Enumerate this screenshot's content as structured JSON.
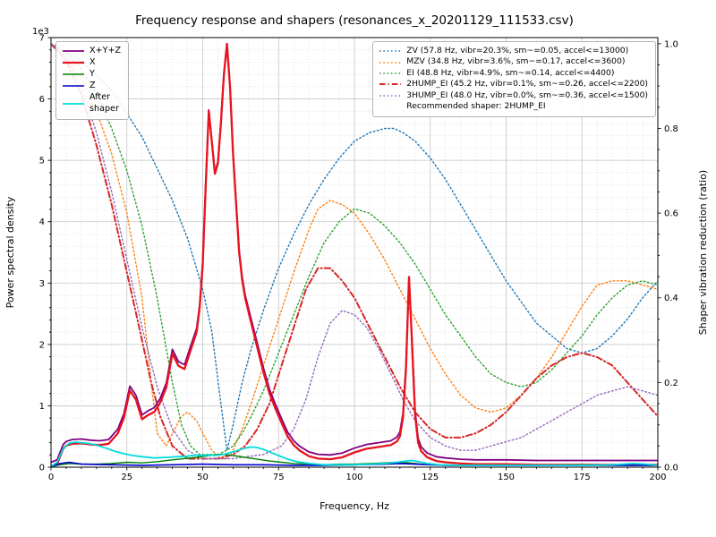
{
  "title": "Frequency response and shapers (resonances_x_20201129_111533.csv)",
  "axes": {
    "x_label": "Frequency, Hz",
    "y_left_label": "Power spectral density",
    "y_right_label": "Shaper vibration reduction (ratio)",
    "y_left_offset": "1e3",
    "x_ticks": [
      0,
      25,
      50,
      75,
      100,
      125,
      150,
      175,
      200
    ],
    "y_left_ticks": [
      0,
      1,
      2,
      3,
      4,
      5,
      6,
      7
    ],
    "y_right_ticks": [
      0.0,
      0.2,
      0.4,
      0.6,
      0.8,
      1.0
    ],
    "x_minor_step": 5,
    "y_left_minor_step": 0.2,
    "y_right_minor_step": 0.05
  },
  "legends": {
    "psd": {
      "items": [
        {
          "series": "X+Y+Z",
          "label": "X+Y+Z"
        },
        {
          "series": "X",
          "label": "X"
        },
        {
          "series": "Y",
          "label": "Y"
        },
        {
          "series": "Z",
          "label": "Z"
        },
        {
          "series": "After shaper",
          "label": "After\nshaper"
        }
      ]
    },
    "shapers": {
      "items": [
        {
          "series": "ZV",
          "label": "ZV (57.8 Hz, vibr=20.3%, sm~=0.05, accel<=13000)"
        },
        {
          "series": "MZV",
          "label": "MZV (34.8 Hz, vibr=3.6%, sm~=0.17, accel<=3600)"
        },
        {
          "series": "EI",
          "label": "EI (48.8 Hz, vibr=4.9%, sm~=0.14, accel<=4400)"
        },
        {
          "series": "2HUMP_EI",
          "label": "2HUMP_EI (45.2 Hz, vibr=0.1%, sm~=0.26, accel<=2200)"
        },
        {
          "series": "3HUMP_EI",
          "label": "3HUMP_EI (48.0 Hz, vibr=0.0%, sm~=0.36, accel<=1500)"
        }
      ],
      "note": "Recommended shaper: 2HUMP_EI"
    }
  },
  "chart_data": {
    "type": "line",
    "title": "Frequency response and shapers (resonances_x_20201129_111533.csv)",
    "xlabel": "Frequency, Hz",
    "ylabel_left": "Power spectral density",
    "ylabel_right": "Shaper vibration reduction (ratio)",
    "x_range": [
      0,
      200
    ],
    "y_left_range": [
      0,
      7
    ],
    "y_left_units": "1e3",
    "y_right_range": [
      0,
      1
    ],
    "right_axis_top_equiv_left": 6.9,
    "grid": {
      "major": true,
      "minor": true
    },
    "series": [
      {
        "name": "ZV",
        "axis": "right",
        "color": "#1f77b4",
        "style": "dotted",
        "width": 1.4,
        "x": [
          0,
          10,
          20,
          30,
          40,
          45,
          50,
          53,
          56,
          58,
          60,
          63,
          66,
          70,
          75,
          80,
          85,
          90,
          95,
          100,
          105,
          110,
          113,
          116,
          120,
          125,
          130,
          135,
          140,
          145,
          150,
          155,
          160,
          165,
          170,
          175,
          180,
          185,
          190,
          195,
          200
        ],
        "y": [
          1.0,
          0.96,
          0.89,
          0.78,
          0.63,
          0.54,
          0.42,
          0.32,
          0.15,
          0.04,
          0.1,
          0.2,
          0.28,
          0.37,
          0.47,
          0.55,
          0.62,
          0.68,
          0.73,
          0.77,
          0.79,
          0.8,
          0.8,
          0.79,
          0.77,
          0.73,
          0.68,
          0.62,
          0.56,
          0.5,
          0.44,
          0.39,
          0.34,
          0.31,
          0.28,
          0.27,
          0.28,
          0.31,
          0.35,
          0.4,
          0.44
        ]
      },
      {
        "name": "MZV",
        "axis": "right",
        "color": "#ff7f0e",
        "style": "dotted",
        "width": 1.4,
        "x": [
          0,
          5,
          10,
          15,
          20,
          25,
          30,
          33,
          35,
          38,
          40,
          43,
          45,
          48,
          50,
          53,
          56,
          58,
          60,
          63,
          66,
          70,
          75,
          80,
          85,
          88,
          92,
          96,
          100,
          105,
          110,
          115,
          120,
          125,
          130,
          135,
          140,
          145,
          150,
          155,
          160,
          165,
          170,
          175,
          180,
          185,
          190,
          195,
          200
        ],
        "y": [
          1.0,
          0.97,
          0.92,
          0.84,
          0.74,
          0.6,
          0.4,
          0.2,
          0.08,
          0.05,
          0.08,
          0.12,
          0.13,
          0.11,
          0.08,
          0.04,
          0.02,
          0.02,
          0.04,
          0.09,
          0.15,
          0.24,
          0.35,
          0.46,
          0.56,
          0.61,
          0.63,
          0.62,
          0.6,
          0.55,
          0.49,
          0.42,
          0.35,
          0.28,
          0.22,
          0.17,
          0.14,
          0.13,
          0.14,
          0.17,
          0.21,
          0.26,
          0.32,
          0.38,
          0.43,
          0.44,
          0.44,
          0.43,
          0.42
        ]
      },
      {
        "name": "EI",
        "axis": "right",
        "color": "#2ca02c",
        "style": "dotted",
        "width": 1.4,
        "x": [
          0,
          5,
          10,
          15,
          20,
          25,
          30,
          35,
          38,
          40,
          43,
          46,
          49,
          52,
          55,
          58,
          60,
          63,
          66,
          70,
          75,
          80,
          85,
          90,
          95,
          100,
          105,
          110,
          115,
          120,
          125,
          130,
          135,
          140,
          145,
          150,
          155,
          160,
          165,
          170,
          175,
          180,
          185,
          190,
          195,
          200
        ],
        "y": [
          1.0,
          0.98,
          0.94,
          0.88,
          0.8,
          0.7,
          0.57,
          0.4,
          0.28,
          0.2,
          0.1,
          0.05,
          0.03,
          0.03,
          0.03,
          0.04,
          0.05,
          0.08,
          0.12,
          0.18,
          0.27,
          0.36,
          0.45,
          0.53,
          0.58,
          0.61,
          0.6,
          0.57,
          0.53,
          0.48,
          0.42,
          0.36,
          0.31,
          0.26,
          0.22,
          0.2,
          0.19,
          0.2,
          0.23,
          0.27,
          0.31,
          0.36,
          0.4,
          0.43,
          0.44,
          0.43
        ]
      },
      {
        "name": "2HUMP_EI",
        "axis": "right",
        "color": "#d62728",
        "style": "dashdot",
        "width": 2.0,
        "x": [
          0,
          5,
          10,
          15,
          20,
          25,
          30,
          33,
          36,
          40,
          45,
          50,
          55,
          60,
          64,
          68,
          72,
          76,
          80,
          84,
          88,
          92,
          96,
          100,
          105,
          110,
          115,
          120,
          125,
          130,
          135,
          140,
          145,
          150,
          155,
          160,
          165,
          170,
          175,
          180,
          185,
          190,
          195,
          200
        ],
        "y": [
          1.0,
          0.96,
          0.88,
          0.76,
          0.62,
          0.46,
          0.3,
          0.2,
          0.12,
          0.05,
          0.02,
          0.02,
          0.02,
          0.03,
          0.05,
          0.09,
          0.15,
          0.24,
          0.33,
          0.42,
          0.47,
          0.47,
          0.44,
          0.4,
          0.33,
          0.26,
          0.19,
          0.13,
          0.09,
          0.07,
          0.07,
          0.08,
          0.1,
          0.13,
          0.17,
          0.21,
          0.24,
          0.26,
          0.27,
          0.26,
          0.24,
          0.2,
          0.16,
          0.12
        ]
      },
      {
        "name": "3HUMP_EI",
        "axis": "right",
        "color": "#9467bd",
        "style": "dotted",
        "width": 1.4,
        "x": [
          0,
          5,
          10,
          15,
          20,
          25,
          30,
          35,
          40,
          45,
          50,
          60,
          70,
          76,
          80,
          84,
          88,
          92,
          96,
          100,
          104,
          108,
          112,
          116,
          120,
          125,
          130,
          135,
          140,
          145,
          150,
          155,
          160,
          165,
          170,
          175,
          180,
          185,
          190,
          195,
          200
        ],
        "y": [
          1.0,
          0.97,
          0.9,
          0.79,
          0.65,
          0.49,
          0.33,
          0.19,
          0.09,
          0.04,
          0.02,
          0.02,
          0.03,
          0.05,
          0.09,
          0.16,
          0.26,
          0.34,
          0.37,
          0.36,
          0.33,
          0.28,
          0.22,
          0.16,
          0.11,
          0.07,
          0.05,
          0.04,
          0.04,
          0.05,
          0.06,
          0.07,
          0.09,
          0.11,
          0.13,
          0.15,
          0.17,
          0.18,
          0.19,
          0.18,
          0.17
        ]
      },
      {
        "name": "X+Y+Z",
        "axis": "left",
        "color": "#800080",
        "style": "solid",
        "width": 1.8,
        "x": [
          0,
          2,
          4,
          5,
          7,
          10,
          13,
          16,
          19,
          22,
          24,
          26,
          28,
          30,
          32,
          34,
          36,
          38,
          40,
          42,
          44,
          46,
          48,
          49,
          50,
          51,
          52,
          53,
          54,
          55,
          56,
          57,
          58,
          59,
          60,
          61,
          62,
          63,
          64,
          66,
          68,
          70,
          72,
          74,
          76,
          78,
          80,
          82,
          85,
          88,
          92,
          96,
          100,
          104,
          108,
          112,
          114,
          115,
          116,
          117,
          118,
          119,
          120,
          121,
          122,
          124,
          127,
          130,
          135,
          140,
          150,
          160,
          170,
          180,
          190,
          200
        ],
        "y": [
          0.08,
          0.12,
          0.37,
          0.42,
          0.45,
          0.46,
          0.44,
          0.43,
          0.45,
          0.62,
          0.87,
          1.32,
          1.17,
          0.85,
          0.92,
          0.97,
          1.12,
          1.37,
          1.92,
          1.72,
          1.67,
          1.97,
          2.26,
          2.65,
          3.35,
          4.64,
          5.82,
          5.32,
          4.81,
          4.98,
          5.62,
          6.42,
          6.88,
          6.22,
          5.13,
          4.33,
          3.54,
          3.1,
          2.8,
          2.41,
          2.02,
          1.62,
          1.27,
          1.02,
          0.79,
          0.57,
          0.43,
          0.34,
          0.25,
          0.21,
          0.2,
          0.23,
          0.31,
          0.37,
          0.4,
          0.43,
          0.49,
          0.57,
          0.87,
          1.66,
          3.08,
          2.06,
          0.92,
          0.47,
          0.33,
          0.23,
          0.17,
          0.15,
          0.13,
          0.12,
          0.12,
          0.11,
          0.11,
          0.11,
          0.11,
          0.11
        ]
      },
      {
        "name": "X",
        "axis": "left",
        "color": "#e8131d",
        "style": "solid",
        "width": 2.3,
        "x": [
          0,
          2,
          4,
          5,
          7,
          10,
          13,
          16,
          19,
          22,
          24,
          26,
          28,
          30,
          32,
          34,
          36,
          38,
          40,
          42,
          44,
          46,
          48,
          49,
          50,
          51,
          52,
          53,
          54,
          55,
          56,
          57,
          58,
          59,
          60,
          61,
          62,
          63,
          64,
          66,
          68,
          70,
          72,
          74,
          76,
          78,
          80,
          82,
          85,
          88,
          92,
          96,
          100,
          104,
          108,
          112,
          114,
          115,
          116,
          117,
          118,
          119,
          120,
          121,
          122,
          124,
          127,
          130,
          135,
          140,
          150,
          160,
          170,
          180,
          190,
          200
        ],
        "y": [
          0.02,
          0.05,
          0.3,
          0.35,
          0.38,
          0.39,
          0.37,
          0.36,
          0.38,
          0.55,
          0.8,
          1.25,
          1.1,
          0.78,
          0.85,
          0.9,
          1.05,
          1.3,
          1.85,
          1.65,
          1.6,
          1.9,
          2.2,
          2.6,
          3.3,
          4.6,
          5.8,
          5.3,
          4.78,
          4.95,
          5.6,
          6.4,
          6.9,
          6.2,
          5.1,
          4.3,
          3.5,
          3.05,
          2.75,
          2.35,
          1.95,
          1.55,
          1.2,
          0.95,
          0.72,
          0.5,
          0.36,
          0.27,
          0.18,
          0.14,
          0.13,
          0.16,
          0.24,
          0.3,
          0.33,
          0.36,
          0.42,
          0.5,
          0.8,
          1.6,
          3.1,
          2.0,
          0.85,
          0.4,
          0.26,
          0.16,
          0.1,
          0.08,
          0.06,
          0.05,
          0.05,
          0.04,
          0.04,
          0.04,
          0.04,
          0.04
        ]
      },
      {
        "name": "Y",
        "axis": "left",
        "color": "#008000",
        "style": "solid",
        "width": 1.4,
        "x": [
          0,
          3,
          6,
          10,
          15,
          20,
          25,
          30,
          35,
          40,
          44,
          48,
          52,
          56,
          60,
          64,
          68,
          72,
          76,
          80,
          85,
          90,
          95,
          100,
          105,
          110,
          114,
          118,
          122,
          130,
          140,
          150,
          160,
          175,
          190,
          200
        ],
        "y": [
          0.01,
          0.04,
          0.06,
          0.05,
          0.05,
          0.06,
          0.08,
          0.07,
          0.09,
          0.12,
          0.14,
          0.16,
          0.19,
          0.21,
          0.19,
          0.16,
          0.13,
          0.1,
          0.08,
          0.06,
          0.05,
          0.04,
          0.05,
          0.05,
          0.06,
          0.07,
          0.08,
          0.07,
          0.05,
          0.03,
          0.03,
          0.03,
          0.03,
          0.04,
          0.03,
          0.03
        ]
      },
      {
        "name": "Z",
        "axis": "left",
        "color": "#0000cc",
        "style": "solid",
        "width": 1.6,
        "x": [
          0,
          3,
          6,
          10,
          20,
          30,
          40,
          50,
          60,
          70,
          80,
          90,
          100,
          110,
          115,
          120,
          130,
          150,
          175,
          200
        ],
        "y": [
          0.01,
          0.06,
          0.08,
          0.05,
          0.04,
          0.03,
          0.04,
          0.05,
          0.04,
          0.04,
          0.03,
          0.03,
          0.04,
          0.05,
          0.06,
          0.05,
          0.03,
          0.03,
          0.03,
          0.03
        ]
      },
      {
        "name": "After shaper",
        "axis": "left",
        "color": "#00dcdc",
        "style": "solid",
        "width": 1.8,
        "x": [
          0,
          2,
          4,
          6,
          8,
          10,
          12,
          15,
          18,
          21,
          24,
          27,
          30,
          34,
          38,
          42,
          45,
          48,
          50,
          52,
          54,
          57,
          60,
          62,
          64,
          66,
          68,
          70,
          72,
          75,
          78,
          81,
          85,
          90,
          95,
          100,
          105,
          110,
          114,
          117,
          119,
          121,
          124,
          128,
          135,
          145,
          155,
          165,
          175,
          185,
          192,
          196,
          200
        ],
        "y": [
          0.01,
          0.08,
          0.3,
          0.39,
          0.41,
          0.4,
          0.39,
          0.36,
          0.31,
          0.26,
          0.22,
          0.19,
          0.17,
          0.15,
          0.16,
          0.17,
          0.18,
          0.2,
          0.19,
          0.2,
          0.19,
          0.21,
          0.25,
          0.28,
          0.31,
          0.33,
          0.32,
          0.29,
          0.25,
          0.19,
          0.13,
          0.09,
          0.06,
          0.04,
          0.04,
          0.04,
          0.05,
          0.06,
          0.08,
          0.1,
          0.11,
          0.09,
          0.06,
          0.04,
          0.03,
          0.03,
          0.03,
          0.03,
          0.03,
          0.04,
          0.06,
          0.05,
          0.03
        ]
      }
    ]
  }
}
